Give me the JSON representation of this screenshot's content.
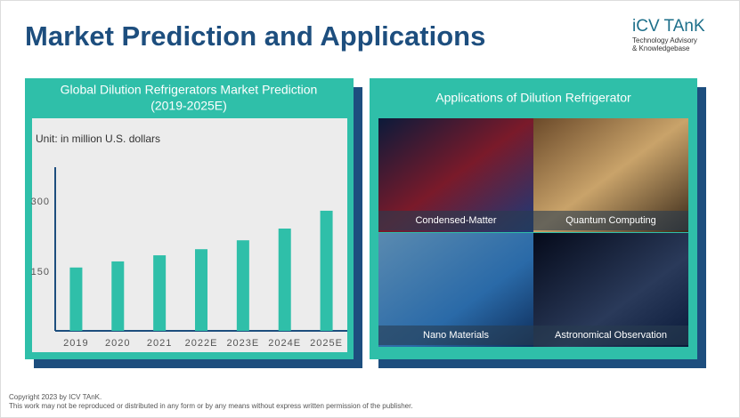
{
  "header": {
    "title": "Market Prediction and Applications",
    "logo": "iCV TAnK",
    "logo_lines": [
      "Technology Advisory",
      "& Knowledgebase"
    ]
  },
  "chart_data": {
    "type": "bar",
    "title": "Global Dilution Refrigerators Market Prediction",
    "subtitle": "(2019-2025E)",
    "unit": "Unit: in million U.S. dollars",
    "categories": [
      "2019",
      "2020",
      "2021",
      "2022E",
      "2023E",
      "2024E",
      "2025E"
    ],
    "values": [
      160,
      173,
      186,
      199,
      218,
      243,
      281
    ],
    "color": "#2fbfa9",
    "ylim": [
      25,
      370
    ],
    "yticks": [
      150,
      300
    ],
    "grid": false
  },
  "applications": {
    "title": "Applications of Dilution Refrigerator",
    "items": [
      "Condensed-Matter",
      "Quantum Computing",
      "Nano Materials",
      "Astronomical Observation"
    ]
  },
  "footer": [
    "Copyright  2023 by ICV TAnK.",
    "This work may not be reproduced or distributed in any form or by any means without express written permission of the publisher."
  ]
}
